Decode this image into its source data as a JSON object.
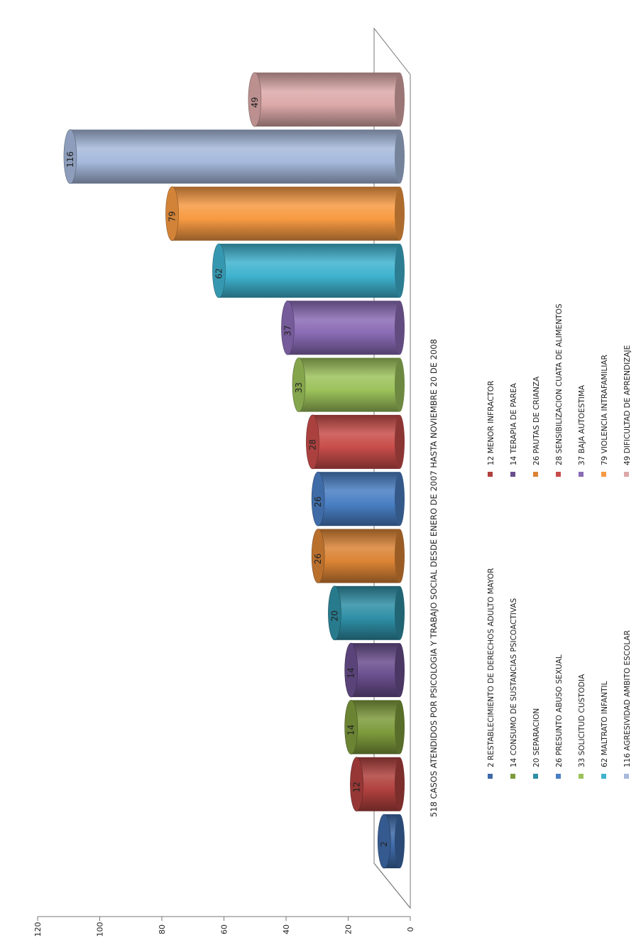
{
  "chart_data": {
    "type": "bar",
    "orientation": "rotated",
    "shape": "3d-cylinder",
    "title": "518 CASOS ATENDIDOS POR PSICOLOGIA Y TRABAJO  SOCIAL DESDE ENERO DE 2007 HASTA NOVIEMBRE  20 DE 2008",
    "ylim": [
      0,
      120
    ],
    "yticks": [
      "0",
      "20",
      "40",
      "60",
      "80",
      "100",
      "120"
    ],
    "grid": false,
    "legend_position": "bottom",
    "series": [
      {
        "name": "2 RESTABLECIMIENTO DE DERECHOS ADULTO  MAYOR",
        "value": 2,
        "label": "2",
        "color": "#3e6aa8"
      },
      {
        "name": "12 MENOR INFRACTOR",
        "value": 12,
        "label": "12",
        "color": "#b0413e"
      },
      {
        "name": "14 CONSUMO DE SUSTANCIAS PSICOACTIVAS",
        "value": 14,
        "label": "14",
        "color": "#7e9b3c"
      },
      {
        "name": "14 TERAPIA DE PAREA",
        "value": 14,
        "label": "14",
        "color": "#6a4f8e"
      },
      {
        "name": "20 SEPARACION",
        "value": 20,
        "label": "20",
        "color": "#2f8fa6"
      },
      {
        "name": "26 PAUTAS DE CRIANZA",
        "value": 26,
        "label": "26",
        "color": "#db8435"
      },
      {
        "name": "26 PRESUNTO  ABUSO SEXUAL",
        "value": 26,
        "label": "26",
        "color": "#4a7fc4"
      },
      {
        "name": "28 SENSIBILIZACION CUATA DE ALIMENTOS",
        "value": 28,
        "label": "28",
        "color": "#c84d4a"
      },
      {
        "name": "33 SOLICITUD CUSTODIA",
        "value": 33,
        "label": "33",
        "color": "#9cc25b"
      },
      {
        "name": "37 BAJA  AUTOESTIMA",
        "value": 37,
        "label": "37",
        "color": "#8a6bb5"
      },
      {
        "name": "62 MALTRATO INFANTIL",
        "value": 62,
        "label": "62",
        "color": "#3fb3cf"
      },
      {
        "name": "79 VIOLENCIA INTRAFAMILIAR",
        "value": 79,
        "label": "79",
        "color": "#f79a42"
      },
      {
        "name": "116 AGRESIVIDAD AMBITO ESCOLAR",
        "value": 116,
        "label": "116",
        "color": "#a6b9dc"
      },
      {
        "name": "49 DIFICULTAD DE APRENDIZAJE",
        "value": 49,
        "label": "49",
        "color": "#dca9a8"
      }
    ]
  }
}
